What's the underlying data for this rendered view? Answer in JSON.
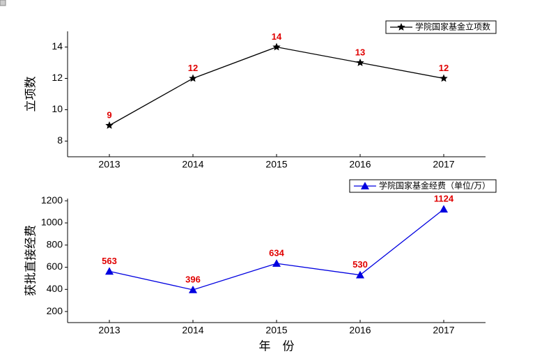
{
  "chart_data": [
    {
      "type": "line",
      "ylabel": "立项数",
      "categories": [
        "2013",
        "2014",
        "2015",
        "2016",
        "2017"
      ],
      "series": [
        {
          "name": "学院国家基金立项数",
          "color": "#000000",
          "marker": "star",
          "values": [
            9,
            12,
            14,
            13,
            12
          ]
        }
      ],
      "ylim": [
        7,
        15
      ],
      "yticks": [
        8,
        10,
        12,
        14
      ],
      "legend": "upper right"
    },
    {
      "type": "line",
      "ylabel": "获批直接经费",
      "xlabel": "年　份",
      "categories": [
        "2013",
        "2014",
        "2015",
        "2016",
        "2017"
      ],
      "series": [
        {
          "name": "学院国家基金经费（单位/万）",
          "color": "#0000e0",
          "marker": "triangle",
          "values": [
            563,
            396,
            634,
            530,
            1124
          ]
        }
      ],
      "ylim": [
        100,
        1220
      ],
      "yticks": [
        200,
        400,
        600,
        800,
        1000,
        1200
      ],
      "legend": "upper right"
    }
  ]
}
